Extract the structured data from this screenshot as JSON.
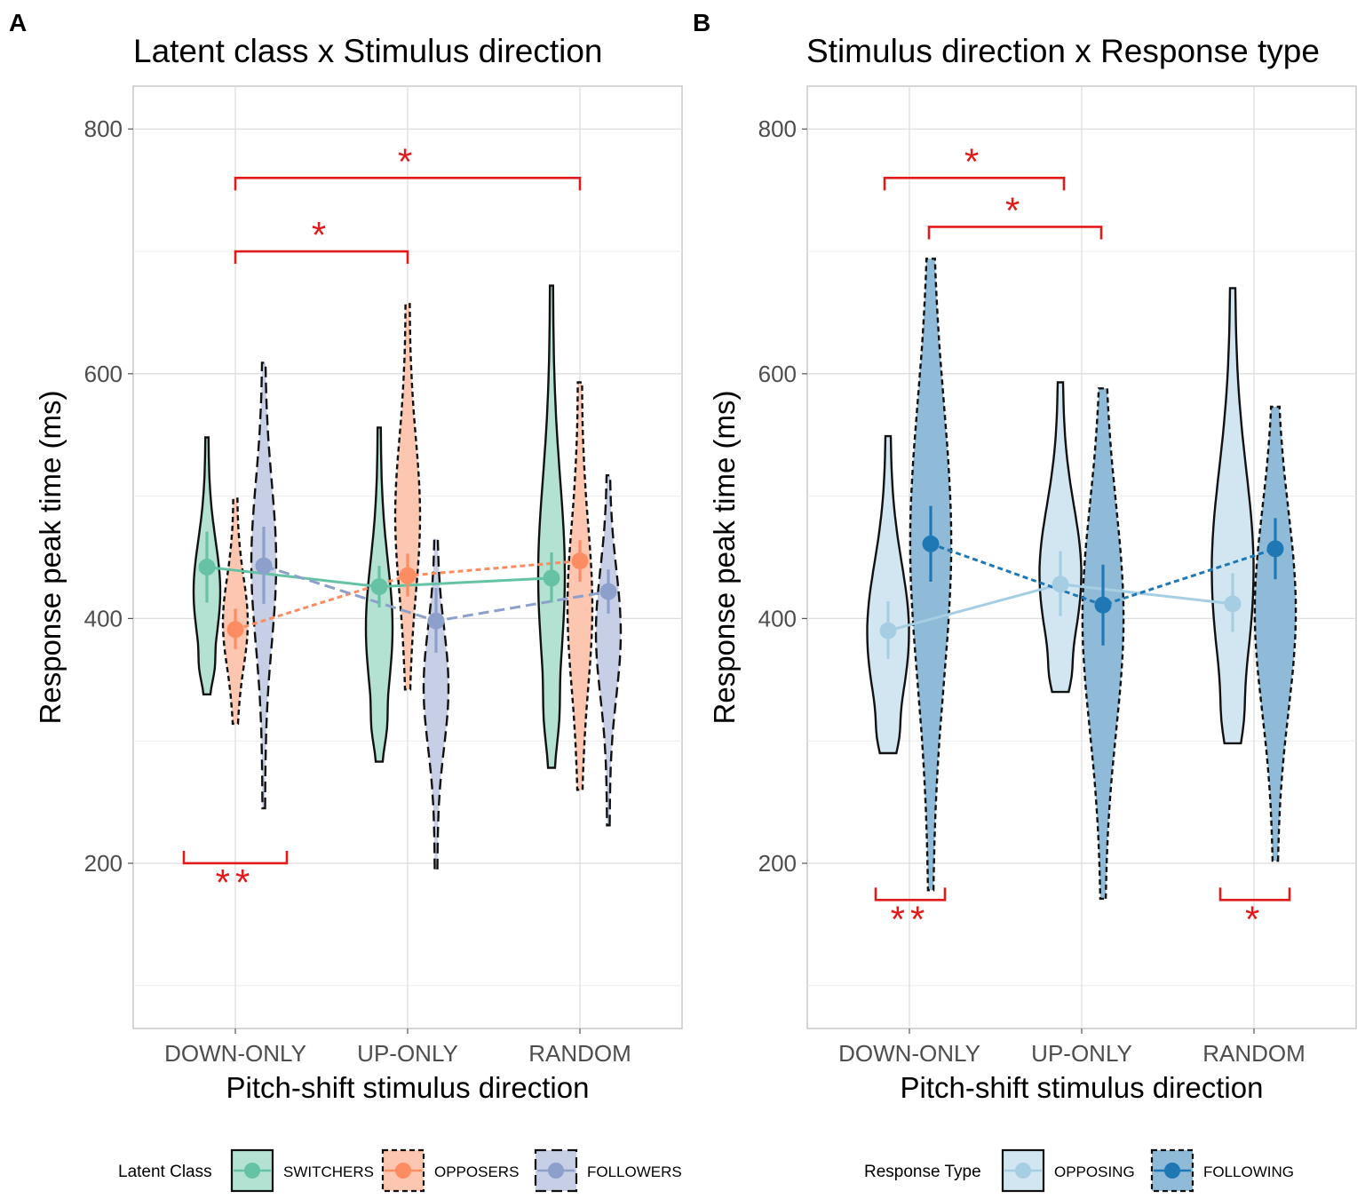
{
  "chart_data": [
    {
      "type": "violin",
      "panel_label": "A",
      "title": "Latent class x Stimulus direction",
      "xlabel": "Pitch-shift stimulus direction",
      "ylabel": "Response peak time (ms)",
      "categories": [
        "DOWN-ONLY",
        "UP-ONLY",
        "RANDOM"
      ],
      "ylim": [
        65,
        835
      ],
      "yticks": [
        200,
        400,
        600,
        800
      ],
      "legend_title": "Latent Class",
      "legend_position": "bottom",
      "series": [
        {
          "name": "SWITCHERS",
          "color": "#66c2a5",
          "line": "solid",
          "means": [
            442,
            426,
            433
          ],
          "ci": [
            [
              413,
              471
            ],
            [
              409,
              443
            ],
            [
              413,
              454
            ]
          ],
          "ranges": [
            [
              338,
              548
            ],
            [
              283,
              556
            ],
            [
              278,
              672
            ]
          ]
        },
        {
          "name": "OPPOSERS",
          "color": "#fc8d62",
          "line": "dotted",
          "means": [
            391,
            435,
            447
          ],
          "ci": [
            [
              375,
              408
            ],
            [
              418,
              453
            ],
            [
              430,
              464
            ]
          ],
          "ranges": [
            [
              314,
              498
            ],
            [
              342,
              657
            ],
            [
              260,
              593
            ]
          ]
        },
        {
          "name": "FOLLOWERS",
          "color": "#8da0cb",
          "line": "dashed",
          "means": [
            443,
            398,
            422
          ],
          "ci": [
            [
              412,
              475
            ],
            [
              372,
              425
            ],
            [
              404,
              440
            ]
          ],
          "ranges": [
            [
              245,
              609
            ],
            [
              195,
              465
            ],
            [
              231,
              517
            ]
          ]
        }
      ],
      "significance": [
        {
          "from": "DOWN-ONLY",
          "to": "RANDOM",
          "y": 760,
          "label": "*"
        },
        {
          "from": "DOWN-ONLY",
          "to": "UP-ONLY",
          "y": 700,
          "label": "*"
        },
        {
          "within": "DOWN-ONLY",
          "y": 200,
          "label": "**"
        }
      ]
    },
    {
      "type": "violin",
      "panel_label": "B",
      "title": "Stimulus direction x Response type",
      "xlabel": "Pitch-shift stimulus direction",
      "ylabel": "Response peak time (ms)",
      "categories": [
        "DOWN-ONLY",
        "UP-ONLY",
        "RANDOM"
      ],
      "ylim": [
        65,
        835
      ],
      "yticks": [
        200,
        400,
        600,
        800
      ],
      "legend_title": "Response Type",
      "legend_position": "bottom",
      "series": [
        {
          "name": "OPPOSING",
          "color": "#a6cee3",
          "line": "solid",
          "means": [
            390,
            428,
            412
          ],
          "ci": [
            [
              367,
              414
            ],
            [
              402,
              455
            ],
            [
              389,
              437
            ]
          ],
          "ranges": [
            [
              290,
              549
            ],
            [
              340,
              593
            ],
            [
              298,
              670
            ]
          ]
        },
        {
          "name": "FOLLOWING",
          "color": "#1f78b4",
          "line": "dotted",
          "means": [
            461,
            411,
            457
          ],
          "ci": [
            [
              430,
              492
            ],
            [
              378,
              444
            ],
            [
              432,
              482
            ]
          ],
          "ranges": [
            [
              178,
              694
            ],
            [
              171,
              588
            ],
            [
              202,
              573
            ]
          ]
        }
      ],
      "significance": [
        {
          "from": "DOWN-ONLY",
          "to": "UP-ONLY",
          "y": 760,
          "label": "*"
        },
        {
          "from": "DOWN-ONLY",
          "to": "UP-ONLY",
          "y": 720,
          "label": "*"
        },
        {
          "within": "DOWN-ONLY",
          "y": 170,
          "label": "**"
        },
        {
          "within": "RANDOM",
          "y": 170,
          "label": "*"
        }
      ]
    }
  ]
}
